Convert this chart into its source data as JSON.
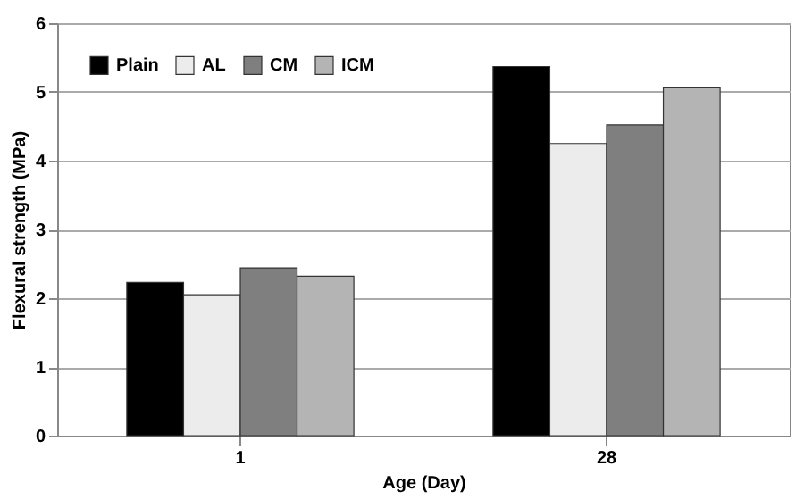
{
  "chart_data": {
    "type": "bar",
    "xlabel": "Age (Day)",
    "ylabel": "Flexural strength (MPa)",
    "categories": [
      "1",
      "28"
    ],
    "series": [
      {
        "name": "Plain",
        "color": "#000000",
        "values": [
          2.23,
          5.37
        ]
      },
      {
        "name": "AL",
        "color": "#ececec",
        "values": [
          2.05,
          4.25
        ]
      },
      {
        "name": "CM",
        "color": "#7f7f7f",
        "values": [
          2.44,
          4.52
        ]
      },
      {
        "name": "ICM",
        "color": "#b4b4b4",
        "values": [
          2.32,
          5.06
        ]
      }
    ],
    "ylim": [
      0,
      6
    ],
    "yticks": [
      0,
      1,
      2,
      3,
      4,
      5,
      6
    ],
    "grid": "y",
    "legend": "top left"
  }
}
